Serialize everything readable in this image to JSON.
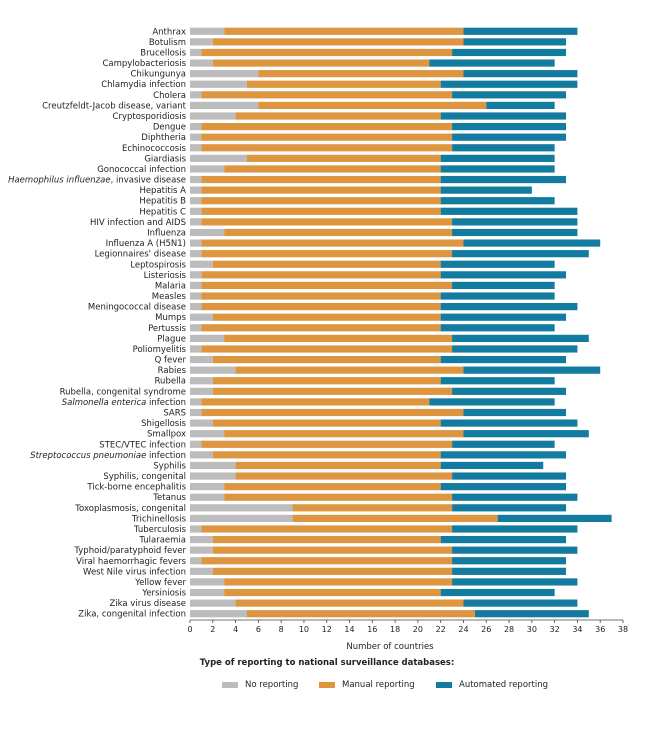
{
  "chart_data": {
    "type": "bar",
    "orientation": "horizontal",
    "stacked": true,
    "xlabel": "Number of countries",
    "xlim": [
      0,
      38
    ],
    "xticks": [
      0,
      2,
      4,
      6,
      8,
      10,
      12,
      14,
      16,
      18,
      20,
      22,
      24,
      26,
      28,
      30,
      32,
      34,
      36,
      38
    ],
    "grid": false,
    "legend_title": "Type of reporting to national surveillance databases:",
    "legend_position": "bottom",
    "categories": [
      "Anthrax",
      "Botulism",
      "Brucellosis",
      "Campylobacteriosis",
      "Chikungunya",
      "Chlamydia infection",
      "Cholera",
      "Creutzfeldt-Jacob disease, variant",
      "Cryptosporidiosis",
      "Dengue",
      "Diphtheria",
      "Echinococcosis",
      "Giardiasis",
      "Gonococcal infection",
      "Haemophilus influenzae, invasive disease",
      "Hepatitis A",
      "Hepatitis B",
      "Hepatitis C",
      "HIV infection and AIDS",
      "Influenza",
      "Influenza A (H5N1)",
      "Legionnaires' disease",
      "Leptospirosis",
      "Listeriosis",
      "Malaria",
      "Measles",
      "Meningococcal disease",
      "Mumps",
      "Pertussis",
      "Plague",
      "Poliomyelitis",
      "Q fever",
      "Rabies",
      "Rubella",
      "Rubella, congenital syndrome",
      "Salmonella enterica infection",
      "SARS",
      "Shigellosis",
      "Smallpox",
      "STEC/VTEC infection",
      "Streptococcus pneumoniae infection",
      "Syphilis",
      "Syphilis, congenital",
      "Tick-borne encephalitis",
      "Tetanus",
      "Toxoplasmosis, congenital",
      "Trichinellosis",
      "Tuberculosis",
      "Tularaemia",
      "Typhoid/paratyphoid fever",
      "Viral haemorrhagic fevers",
      "West Nile virus infection",
      "Yellow fever",
      "Yersiniosis",
      "Zika virus disease",
      "Zika, congenital infection"
    ],
    "series": [
      {
        "name": "No reporting",
        "color": "#bcbcbc",
        "values": [
          3,
          2,
          1,
          2,
          6,
          5,
          1,
          6,
          4,
          1,
          1,
          1,
          5,
          3,
          1,
          1,
          1,
          1,
          1,
          3,
          1,
          1,
          2,
          1,
          1,
          1,
          1,
          2,
          1,
          3,
          1,
          2,
          4,
          2,
          2,
          1,
          1,
          2,
          3,
          1,
          2,
          4,
          4,
          3,
          3,
          9,
          9,
          1,
          2,
          2,
          1,
          2,
          3,
          3,
          4,
          5
        ]
      },
      {
        "name": "Manual reporting",
        "color": "#dd9540",
        "values": [
          21,
          22,
          22,
          19,
          18,
          17,
          22,
          20,
          18,
          22,
          22,
          22,
          17,
          19,
          21,
          21,
          21,
          21,
          22,
          20,
          23,
          22,
          20,
          21,
          22,
          21,
          21,
          20,
          21,
          20,
          22,
          20,
          20,
          20,
          21,
          20,
          23,
          20,
          21,
          22,
          20,
          18,
          19,
          19,
          20,
          14,
          18,
          22,
          20,
          21,
          22,
          21,
          20,
          19,
          20,
          20
        ]
      },
      {
        "name": "Automated reporting",
        "color": "#147ba0",
        "values": [
          10,
          9,
          10,
          11,
          10,
          12,
          10,
          6,
          11,
          10,
          10,
          9,
          10,
          10,
          11,
          8,
          10,
          12,
          11,
          11,
          12,
          12,
          10,
          11,
          9,
          10,
          12,
          11,
          10,
          12,
          11,
          11,
          12,
          10,
          10,
          11,
          9,
          12,
          11,
          9,
          11,
          9,
          10,
          11,
          11,
          10,
          10,
          11,
          11,
          11,
          10,
          10,
          11,
          10,
          10,
          10
        ]
      }
    ]
  }
}
